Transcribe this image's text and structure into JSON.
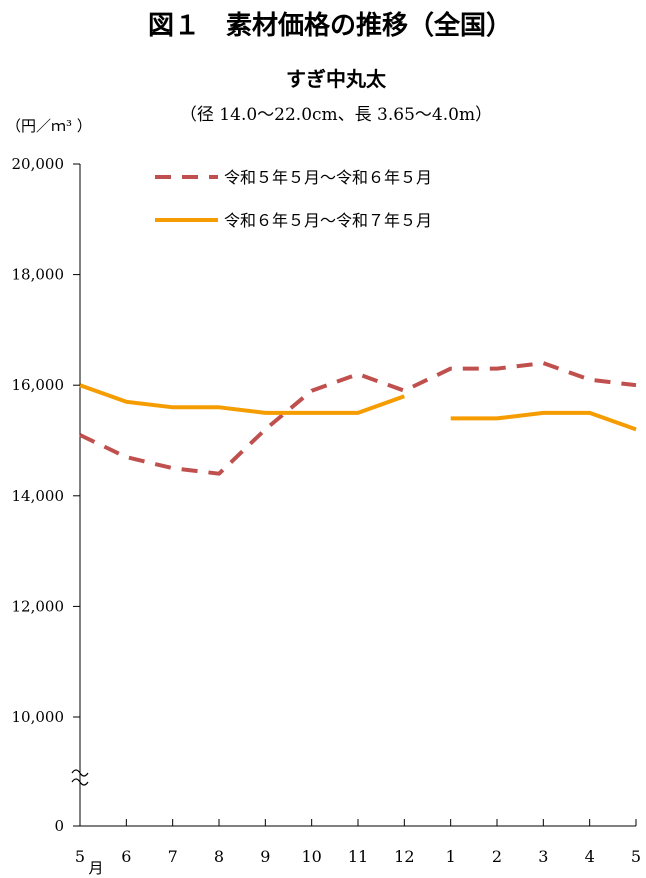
{
  "figure_title": "図１　素材価格の推移（全国）",
  "subtitle": "すぎ中丸太",
  "spec": "（径 14.0～22.0cm、長 3.65～4.0m）",
  "unit_label": "（円／ｍ³ ）",
  "chart_data": {
    "type": "line",
    "categories": [
      "5",
      "6",
      "7",
      "8",
      "9",
      "10",
      "11",
      "12",
      "1",
      "2",
      "3",
      "4",
      "5"
    ],
    "x_unit": "月",
    "y_ticks": [
      {
        "value": 20000,
        "label": "20,000"
      },
      {
        "value": 18000,
        "label": "18,000"
      },
      {
        "value": 16000,
        "label": "16,000"
      },
      {
        "value": 14000,
        "label": "14,000"
      },
      {
        "value": 12000,
        "label": "12,000"
      },
      {
        "value": 10000,
        "label": "10,000"
      },
      {
        "value": 0,
        "label": "0"
      }
    ],
    "axis_break": true,
    "grid": false,
    "legend_position": "top",
    "series": [
      {
        "name": "令和５年５月～令和６年５月",
        "style": "dashed",
        "color": "#c0504d",
        "values": [
          15100,
          14700,
          14500,
          14400,
          15200,
          15900,
          16200,
          15900,
          16300,
          16300,
          16400,
          16100,
          16000
        ]
      },
      {
        "name": "令和６年５月～令和７年５月",
        "style": "solid",
        "color": "#f59c00",
        "values": [
          16000,
          15700,
          15600,
          15600,
          15500,
          15500,
          15500,
          15800,
          15400,
          15400,
          15500,
          15500,
          15200
        ]
      }
    ]
  }
}
